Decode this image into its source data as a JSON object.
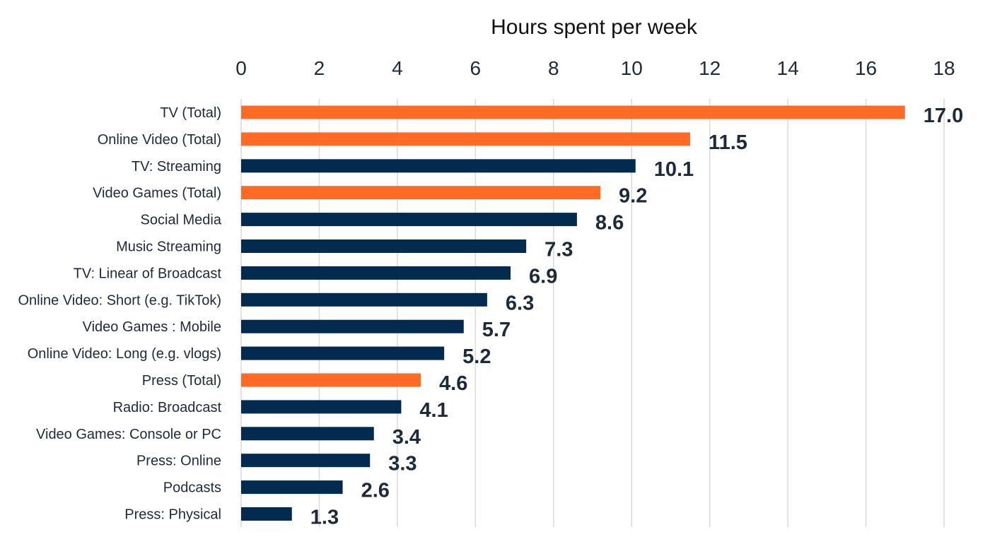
{
  "chart_data": {
    "type": "bar",
    "orientation": "horizontal",
    "title": "",
    "xlabel": "Hours spent per week",
    "ylabel": "",
    "xlim": [
      0,
      18
    ],
    "x_ticks": [
      0,
      2,
      4,
      6,
      8,
      10,
      12,
      14,
      16,
      18
    ],
    "x_axis_position": "top",
    "grid": true,
    "legend": "none",
    "categories": [
      "TV (Total)",
      "Online Video (Total)",
      "TV: Streaming",
      "Video Games (Total)",
      "Social Media",
      "Music Streaming",
      "TV: Linear of Broadcast",
      "Online Video: Short (e.g. TikTok)",
      "Video Games : Mobile",
      "Online Video: Long (e.g. vlogs)",
      "Press (Total)",
      "Radio: Broadcast",
      "Video Games: Console or PC",
      "Press: Online",
      "Podcasts",
      "Press: Physical"
    ],
    "values": [
      17.0,
      11.5,
      10.1,
      9.2,
      8.6,
      7.3,
      6.9,
      6.3,
      5.7,
      5.2,
      4.6,
      4.1,
      3.4,
      3.3,
      2.6,
      1.3
    ],
    "data_labels": [
      "17.0",
      "11.5",
      "10.1",
      "9.2",
      "8.6",
      "7.3",
      "6.9",
      "6.3",
      "5.7",
      "5.2",
      "4.6",
      "4.1",
      "3.4",
      "3.3",
      "2.6",
      "1.3"
    ],
    "highlighted": [
      true,
      true,
      false,
      true,
      false,
      false,
      false,
      false,
      false,
      false,
      true,
      false,
      false,
      false,
      false,
      false
    ],
    "colors": {
      "highlight": "#ff6b24",
      "default": "#032b4f",
      "label": "#1d2a3a",
      "grid": "#d9d9d9"
    }
  }
}
